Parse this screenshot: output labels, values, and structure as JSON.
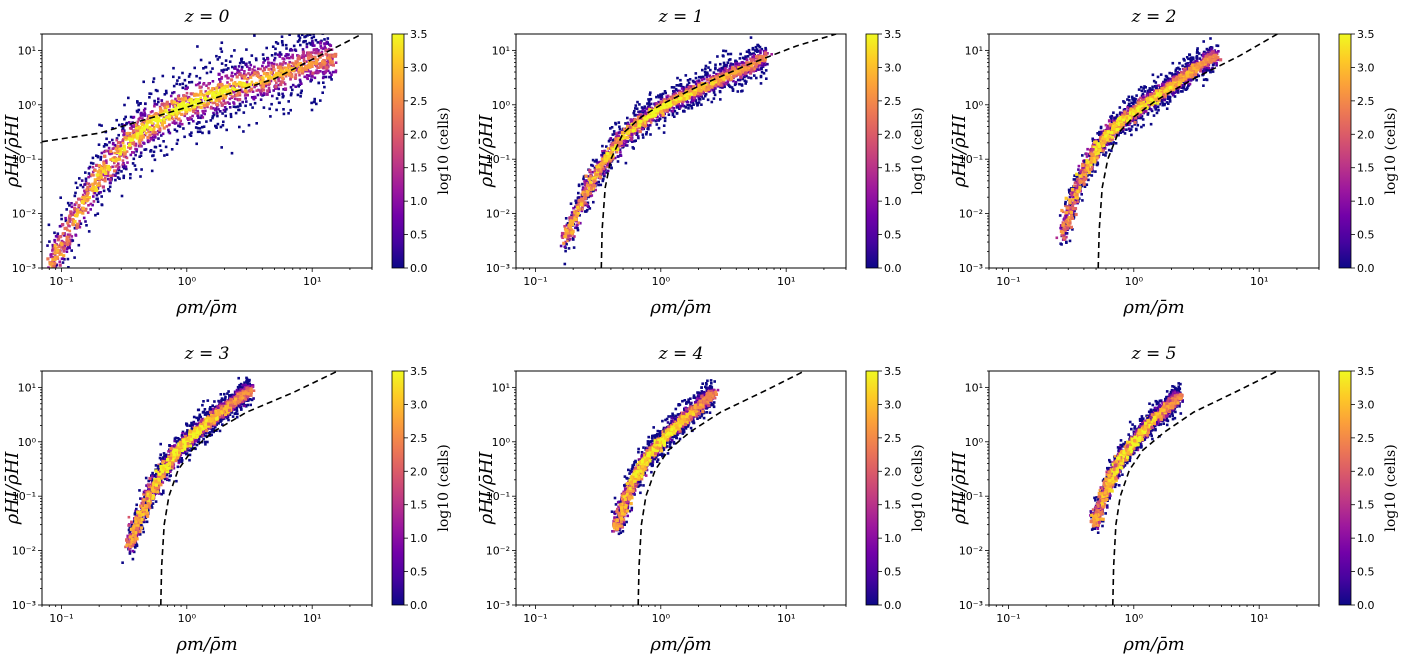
{
  "figure": {
    "colormap": [
      "#0d0887",
      "#46039f",
      "#7201a8",
      "#9c179e",
      "#bd3786",
      "#d8576b",
      "#ed7953",
      "#fb9f3a",
      "#fdca26",
      "#f0f921"
    ],
    "background": "#ffffff",
    "fit_line_color": "#000000"
  },
  "chart_data": [
    {
      "type": "heatmap",
      "title": "z = 0",
      "xlabel": "ρm/ρ̄m",
      "ylabel": "ρHI/ρ̄HI",
      "xscale": "log",
      "yscale": "log",
      "xlim": [
        0.07,
        30
      ],
      "ylim": [
        0.001,
        20
      ],
      "x_ticks": [
        "10⁻¹",
        "10⁰",
        "10¹"
      ],
      "y_ticks": [
        "10⁻³",
        "10⁻²",
        "10⁻¹",
        "10⁰",
        "10¹"
      ],
      "colorbar": {
        "label": "log10 (cells)",
        "range": [
          0.0,
          3.5
        ],
        "ticks": [
          "0.0",
          "0.5",
          "1.0",
          "1.5",
          "2.0",
          "2.5",
          "3.0",
          "3.5"
        ]
      },
      "ridge": {
        "x": [
          0.08,
          0.12,
          0.2,
          0.4,
          0.8,
          2,
          5,
          10,
          15
        ],
        "y": [
          0.001,
          0.006,
          0.05,
          0.3,
          0.8,
          1.8,
          3.5,
          6,
          7
        ]
      },
      "fit_line": {
        "x": [
          0.07,
          0.2,
          1,
          5,
          25
        ],
        "y": [
          0.21,
          0.3,
          0.9,
          3.0,
          20
        ]
      }
    },
    {
      "type": "heatmap",
      "title": "z = 1",
      "xlabel": "ρm/ρ̄m",
      "ylabel": "ρHI/ρ̄HI",
      "xscale": "log",
      "yscale": "log",
      "xlim": [
        0.07,
        30
      ],
      "ylim": [
        0.001,
        20
      ],
      "x_ticks": [
        "10⁻¹",
        "10⁰",
        "10¹"
      ],
      "y_ticks": [
        "10⁻³",
        "10⁻²",
        "10⁻¹",
        "10⁰",
        "10¹"
      ],
      "colorbar": {
        "label": "log10 (cells)",
        "range": [
          0.0,
          3.5
        ],
        "ticks": [
          "0.0",
          "0.5",
          "1.0",
          "1.5",
          "2.0",
          "2.5",
          "3.0",
          "3.5"
        ]
      },
      "ridge": {
        "x": [
          0.17,
          0.22,
          0.3,
          0.45,
          0.7,
          1.2,
          2.5,
          5,
          7
        ],
        "y": [
          0.003,
          0.012,
          0.05,
          0.2,
          0.5,
          1.1,
          2.5,
          5,
          8
        ]
      },
      "fit_line": {
        "x": [
          0.335,
          0.34,
          0.36,
          0.4,
          0.5,
          0.7,
          1,
          2,
          5,
          12,
          25
        ],
        "y": [
          0.001,
          0.005,
          0.03,
          0.1,
          0.3,
          0.6,
          1.0,
          2.2,
          5.5,
          12,
          20
        ]
      }
    },
    {
      "type": "heatmap",
      "title": "z = 2",
      "xlabel": "ρm/ρ̄m",
      "ylabel": "ρHI/ρ̄HI",
      "xscale": "log",
      "yscale": "log",
      "xlim": [
        0.07,
        30
      ],
      "ylim": [
        0.001,
        20
      ],
      "x_ticks": [
        "10⁻¹",
        "10⁰",
        "10¹"
      ],
      "y_ticks": [
        "10⁻³",
        "10⁻²",
        "10⁻¹",
        "10⁰",
        "10¹"
      ],
      "colorbar": {
        "label": "log10 (cells)",
        "range": [
          0.0,
          3.5
        ],
        "ticks": [
          "0.0",
          "0.5",
          "1.0",
          "1.5",
          "2.0",
          "2.5",
          "3.0",
          "3.5"
        ]
      },
      "ridge": {
        "x": [
          0.27,
          0.32,
          0.4,
          0.55,
          0.8,
          1.2,
          2,
          3.2,
          4.5
        ],
        "y": [
          0.004,
          0.015,
          0.06,
          0.2,
          0.5,
          1.0,
          2.2,
          5,
          8
        ]
      },
      "fit_line": {
        "x": [
          0.52,
          0.53,
          0.56,
          0.62,
          0.75,
          1,
          1.5,
          3,
          7,
          14
        ],
        "y": [
          0.001,
          0.005,
          0.03,
          0.1,
          0.3,
          0.6,
          1.2,
          3.0,
          8,
          20
        ]
      }
    },
    {
      "type": "heatmap",
      "title": "z = 3",
      "xlabel": "ρm/ρ̄m",
      "ylabel": "ρHI/ρ̄HI",
      "xscale": "log",
      "yscale": "log",
      "xlim": [
        0.07,
        30
      ],
      "ylim": [
        0.001,
        20
      ],
      "x_ticks": [
        "10⁻¹",
        "10⁰",
        "10¹"
      ],
      "y_ticks": [
        "10⁻³",
        "10⁻²",
        "10⁻¹",
        "10⁰",
        "10¹"
      ],
      "colorbar": {
        "label": "log10 (cells)",
        "range": [
          0.0,
          3.5
        ],
        "ticks": [
          "0.0",
          "0.5",
          "1.0",
          "1.5",
          "2.0",
          "2.5",
          "3.0",
          "3.5"
        ]
      },
      "ridge": {
        "x": [
          0.35,
          0.4,
          0.5,
          0.65,
          0.9,
          1.3,
          2.0,
          3.2
        ],
        "y": [
          0.012,
          0.03,
          0.1,
          0.3,
          0.8,
          1.8,
          4,
          9
        ]
      },
      "fit_line": {
        "x": [
          0.62,
          0.63,
          0.66,
          0.72,
          0.85,
          1.1,
          1.6,
          3,
          7,
          16
        ],
        "y": [
          0.001,
          0.005,
          0.03,
          0.1,
          0.3,
          0.7,
          1.5,
          3.5,
          8,
          20
        ]
      }
    },
    {
      "type": "heatmap",
      "title": "z = 4",
      "xlabel": "ρm/ρ̄m",
      "ylabel": "ρHI/ρ̄HI",
      "xscale": "log",
      "yscale": "log",
      "xlim": [
        0.07,
        30
      ],
      "ylim": [
        0.001,
        20
      ],
      "x_ticks": [
        "10⁻¹",
        "10⁰",
        "10¹"
      ],
      "y_ticks": [
        "10⁻³",
        "10⁻²",
        "10⁻¹",
        "10⁰",
        "10¹"
      ],
      "colorbar": {
        "label": "log10 (cells)",
        "range": [
          0.0,
          3.5
        ],
        "ticks": [
          "0.0",
          "0.5",
          "1.0",
          "1.5",
          "2.0",
          "2.5",
          "3.0",
          "3.5"
        ]
      },
      "ridge": {
        "x": [
          0.44,
          0.5,
          0.6,
          0.75,
          1.0,
          1.4,
          2.0,
          2.6
        ],
        "y": [
          0.025,
          0.06,
          0.18,
          0.45,
          1.0,
          2.2,
          4.5,
          8
        ]
      },
      "fit_line": {
        "x": [
          0.66,
          0.67,
          0.7,
          0.76,
          0.9,
          1.15,
          1.7,
          3,
          7,
          14
        ],
        "y": [
          0.001,
          0.005,
          0.03,
          0.1,
          0.3,
          0.7,
          1.5,
          3.5,
          9,
          20
        ]
      }
    },
    {
      "type": "heatmap",
      "title": "z = 5",
      "xlabel": "ρm/ρ̄m",
      "ylabel": "ρHI/ρ̄HI",
      "xscale": "log",
      "yscale": "log",
      "xlim": [
        0.07,
        30
      ],
      "ylim": [
        0.001,
        20
      ],
      "x_ticks": [
        "10⁻¹",
        "10⁰",
        "10¹"
      ],
      "y_ticks": [
        "10⁻³",
        "10⁻²",
        "10⁻¹",
        "10⁰",
        "10¹"
      ],
      "colorbar": {
        "label": "log10 (cells)",
        "range": [
          0.0,
          3.5
        ],
        "ticks": [
          "0.0",
          "0.5",
          "1.0",
          "1.5",
          "2.0",
          "2.5",
          "3.0",
          "3.5"
        ]
      },
      "ridge": {
        "x": [
          0.48,
          0.55,
          0.65,
          0.8,
          1.05,
          1.4,
          1.9,
          2.3
        ],
        "y": [
          0.03,
          0.07,
          0.2,
          0.5,
          1.1,
          2.4,
          4.5,
          7
        ]
      },
      "fit_line": {
        "x": [
          0.68,
          0.69,
          0.72,
          0.78,
          0.92,
          1.18,
          1.75,
          3,
          7,
          14
        ],
        "y": [
          0.001,
          0.005,
          0.03,
          0.1,
          0.3,
          0.7,
          1.5,
          3.5,
          9,
          20
        ]
      }
    }
  ]
}
